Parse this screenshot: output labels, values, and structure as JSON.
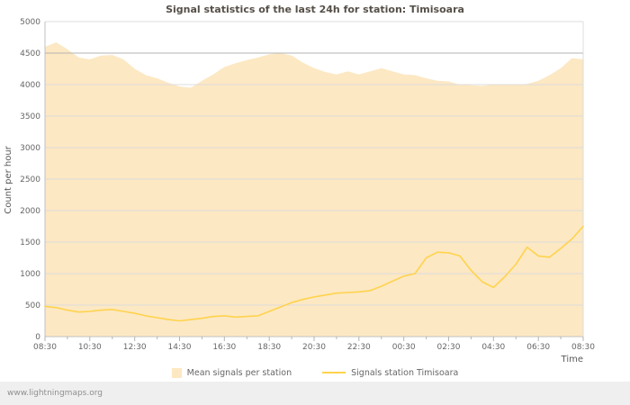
{
  "page": {
    "watermark": "www.lightningmaps.org"
  },
  "chart_data": {
    "type": "area",
    "title": "Signal statistics of the last 24h for station: Timisoara",
    "xlabel": "Time",
    "ylabel": "Count per hour",
    "xlim": [
      0,
      24
    ],
    "ylim": [
      0,
      5000
    ],
    "ytick_step": 500,
    "highlight_gridline": 4500,
    "grid": "horizontal",
    "legend_position": "bottom-center",
    "x_unit": "hours since 08:30",
    "x_tick_labels": [
      "08:30",
      "10:30",
      "12:30",
      "14:30",
      "16:30",
      "18:30",
      "20:30",
      "22:30",
      "00:30",
      "02:30",
      "04:30",
      "06:30",
      "08:30"
    ],
    "x": [
      0,
      0.5,
      1,
      1.5,
      2,
      2.5,
      3,
      3.5,
      4,
      4.5,
      5,
      5.5,
      6,
      6.5,
      7,
      7.5,
      8,
      8.5,
      9,
      9.5,
      10,
      10.5,
      11,
      11.5,
      12,
      12.5,
      13,
      13.5,
      14,
      14.5,
      15,
      15.5,
      16,
      16.5,
      17,
      17.5,
      18,
      18.5,
      19,
      19.5,
      20,
      20.5,
      21,
      21.5,
      22,
      22.5,
      23,
      23.5,
      24
    ],
    "series": [
      {
        "name": "Mean signals per station",
        "type": "area",
        "color": "#fce8c3",
        "values": [
          4600,
          4670,
          4560,
          4430,
          4400,
          4460,
          4470,
          4400,
          4250,
          4150,
          4100,
          4030,
          3970,
          3950,
          4060,
          4160,
          4280,
          4340,
          4390,
          4430,
          4480,
          4500,
          4460,
          4350,
          4260,
          4200,
          4160,
          4210,
          4160,
          4210,
          4260,
          4210,
          4160,
          4150,
          4100,
          4060,
          4050,
          4000,
          3990,
          3980,
          4000,
          4000,
          4000,
          4010,
          4060,
          4150,
          4260,
          4420,
          4400
        ]
      },
      {
        "name": "Signals station Timisoara",
        "type": "line",
        "color": "#ffd34d",
        "values": [
          480,
          460,
          420,
          390,
          400,
          420,
          430,
          400,
          370,
          330,
          300,
          270,
          250,
          270,
          290,
          320,
          330,
          310,
          320,
          330,
          400,
          470,
          540,
          590,
          630,
          660,
          690,
          700,
          710,
          730,
          800,
          880,
          960,
          1000,
          1250,
          1340,
          1330,
          1280,
          1050,
          870,
          780,
          950,
          1150,
          1420,
          1280,
          1260,
          1400,
          1550,
          1750
        ]
      }
    ]
  }
}
